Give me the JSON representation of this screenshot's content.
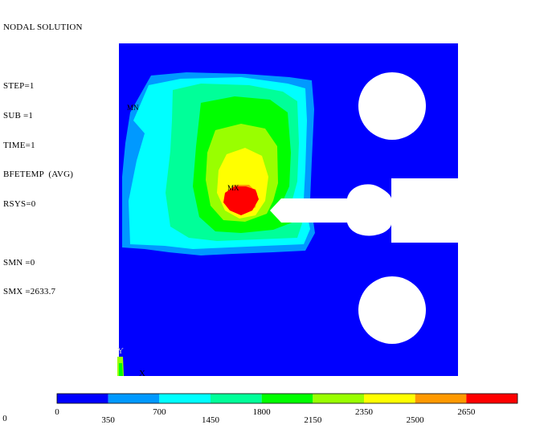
{
  "info_lines": {
    "title": "NODAL SOLUTION",
    "step": "STEP=1",
    "sub": "SUB =1",
    "time": "TIME=1",
    "field": "BFETEMP  (AVG)",
    "rsys": "RSYS=0",
    "smn": "SMN =0",
    "smx": "SMX =2633.7"
  },
  "plot_markers": {
    "mn": "MN",
    "mx": "MX",
    "axis_y": "Y",
    "axis_x": "X"
  },
  "legend": {
    "colors": [
      "#0000ff",
      "#0099ff",
      "#00ffff",
      "#00ff99",
      "#00ff00",
      "#99ff00",
      "#ffff00",
      "#ff9900",
      "#ff0000"
    ],
    "labels": [
      {
        "text": "0",
        "row": "top"
      },
      {
        "text": "350",
        "row": "bottom"
      },
      {
        "text": "700",
        "row": "top"
      },
      {
        "text": "1450",
        "row": "bottom"
      },
      {
        "text": "1800",
        "row": "top"
      },
      {
        "text": "2150",
        "row": "bottom"
      },
      {
        "text": "2350",
        "row": "top"
      },
      {
        "text": "2500",
        "row": "bottom"
      },
      {
        "text": "2650",
        "row": "top"
      }
    ],
    "corner_label": "0"
  }
}
